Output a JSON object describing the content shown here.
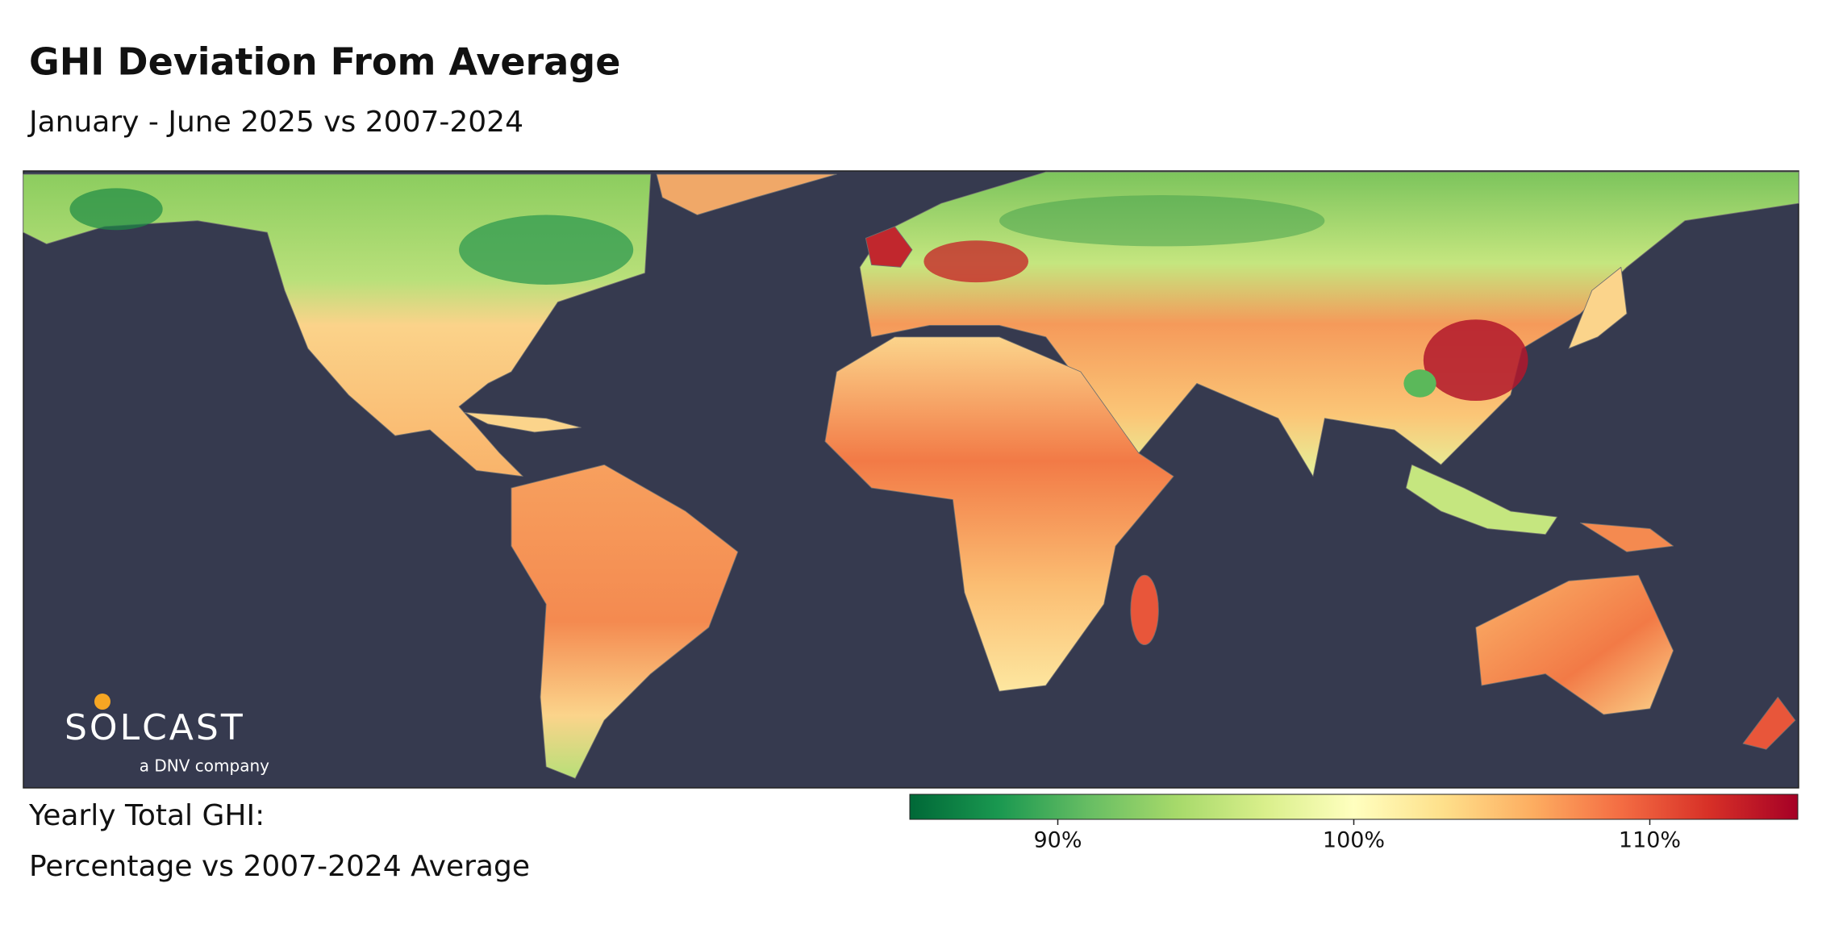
{
  "header": {
    "title": "GHI Deviation From Average",
    "subtitle": "January - June 2025 vs 2007-2024"
  },
  "legend": {
    "title": "Yearly Total GHI:",
    "subtitle": "Percentage vs 2007-2024 Average"
  },
  "colorbar": {
    "range": [
      85,
      115
    ],
    "ticks": [
      {
        "value": 90,
        "label": "90%"
      },
      {
        "value": 100,
        "label": "100%"
      },
      {
        "value": 110,
        "label": "110%"
      }
    ],
    "colors": [
      "#006837",
      "#1a9850",
      "#66bd63",
      "#a6d96a",
      "#d9ef8b",
      "#ffffbf",
      "#fee08b",
      "#fdae61",
      "#f46d43",
      "#d73027",
      "#a50026"
    ]
  },
  "logo": {
    "name": "SOLCAST",
    "tagline": "a DNV company"
  }
}
